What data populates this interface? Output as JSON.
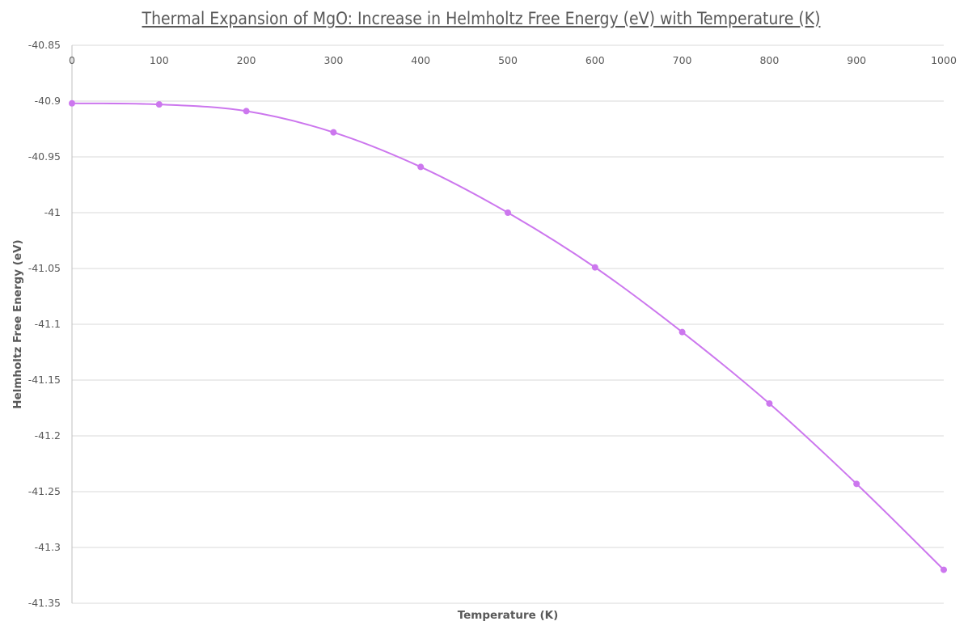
{
  "chart_data": {
    "type": "line",
    "title": "Thermal Expansion of MgO: Increase in Helmholtz Free Energy (eV) with Temperature (K)",
    "xlabel": "Temperature (K)",
    "ylabel": "Helmholtz Free Energy (eV)",
    "x": [
      0,
      100,
      200,
      300,
      400,
      500,
      600,
      700,
      800,
      900,
      1000
    ],
    "series": [
      {
        "name": "Helmholtz Free Energy",
        "color": "#cc77ee",
        "values": [
          -40.902,
          -40.903,
          -40.909,
          -40.928,
          -40.959,
          -41.0,
          -41.049,
          -41.107,
          -41.171,
          -41.243,
          -41.32
        ]
      }
    ],
    "xlim": [
      0,
      1000
    ],
    "ylim": [
      -41.35,
      -40.85
    ],
    "x_ticks": [
      "0",
      "100",
      "200",
      "300",
      "400",
      "500",
      "600",
      "700",
      "800",
      "900",
      "1000"
    ],
    "x_tick_values": [
      0,
      100,
      200,
      300,
      400,
      500,
      600,
      700,
      800,
      900,
      1000
    ],
    "y_ticks": [
      "-40.85",
      "-40.9",
      "-40.95",
      "-41",
      "-41.05",
      "-41.1",
      "-41.15",
      "-41.2",
      "-41.25",
      "-41.3",
      "-41.35"
    ],
    "y_tick_values": [
      -40.85,
      -40.9,
      -40.95,
      -41.0,
      -41.05,
      -41.1,
      -41.15,
      -41.2,
      -41.25,
      -41.3,
      -41.35
    ],
    "x_axis_position": "top",
    "grid": true,
    "legend": "none",
    "gridline_color": "#d9d9d9",
    "text_color": "#595959"
  }
}
